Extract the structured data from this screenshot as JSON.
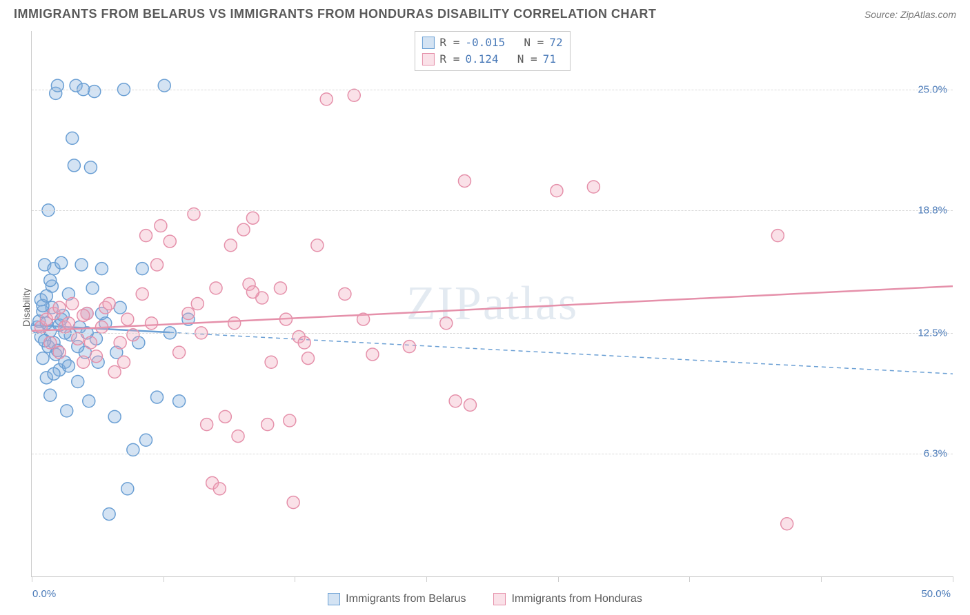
{
  "header": {
    "title": "IMMIGRANTS FROM BELARUS VS IMMIGRANTS FROM HONDURAS DISABILITY CORRELATION CHART",
    "source": "Source: ZipAtlas.com"
  },
  "chart": {
    "type": "scatter",
    "watermark": "ZIPatlas",
    "ylabel": "Disability",
    "xlim": [
      0,
      50
    ],
    "ylim": [
      0,
      28
    ],
    "yticks": [
      {
        "v": 25.0,
        "label": "25.0%"
      },
      {
        "v": 18.8,
        "label": "18.8%"
      },
      {
        "v": 12.5,
        "label": "12.5%"
      },
      {
        "v": 6.3,
        "label": "6.3%"
      }
    ],
    "xtick_positions": [
      0,
      7.14,
      14.28,
      21.42,
      28.56,
      35.7,
      42.84,
      50
    ],
    "xtick_labels": {
      "left": "0.0%",
      "right": "50.0%"
    },
    "background_color": "#ffffff",
    "grid_color": "#d8d8d8",
    "marker_radius": 9,
    "marker_stroke_width": 1.5,
    "trend_line_width": 2.5,
    "series": {
      "belarus": {
        "label": "Immigrants from Belarus",
        "fill": "rgba(133,175,222,0.35)",
        "stroke": "#6a9fd4",
        "trend": {
          "y_at_x0": 12.9,
          "y_at_xmax": 10.4,
          "solid_until_x": 7.5
        },
        "points": [
          [
            0.3,
            12.8
          ],
          [
            0.4,
            13.1
          ],
          [
            0.5,
            12.3
          ],
          [
            0.5,
            14.2
          ],
          [
            0.6,
            11.2
          ],
          [
            0.6,
            13.6
          ],
          [
            0.7,
            16.0
          ],
          [
            0.8,
            10.2
          ],
          [
            0.8,
            13.0
          ],
          [
            0.9,
            18.8
          ],
          [
            0.9,
            11.8
          ],
          [
            1.0,
            12.6
          ],
          [
            1.0,
            9.3
          ],
          [
            1.1,
            13.8
          ],
          [
            1.1,
            14.9
          ],
          [
            1.2,
            12.0
          ],
          [
            1.2,
            15.8
          ],
          [
            1.3,
            11.4
          ],
          [
            1.3,
            24.8
          ],
          [
            1.4,
            25.2
          ],
          [
            1.5,
            10.6
          ],
          [
            1.5,
            12.9
          ],
          [
            1.6,
            16.1
          ],
          [
            1.7,
            13.4
          ],
          [
            1.8,
            11.0
          ],
          [
            1.9,
            8.5
          ],
          [
            2.0,
            14.5
          ],
          [
            2.1,
            12.4
          ],
          [
            2.2,
            22.5
          ],
          [
            2.3,
            21.1
          ],
          [
            2.4,
            25.2
          ],
          [
            2.5,
            10.0
          ],
          [
            2.6,
            12.8
          ],
          [
            2.7,
            16.0
          ],
          [
            2.8,
            25.0
          ],
          [
            2.9,
            11.5
          ],
          [
            3.0,
            13.5
          ],
          [
            3.1,
            9.0
          ],
          [
            3.2,
            21.0
          ],
          [
            3.3,
            14.8
          ],
          [
            3.4,
            24.9
          ],
          [
            3.5,
            12.2
          ],
          [
            3.6,
            11.0
          ],
          [
            3.8,
            15.8
          ],
          [
            4.0,
            13.0
          ],
          [
            4.2,
            3.2
          ],
          [
            4.5,
            8.2
          ],
          [
            4.6,
            11.5
          ],
          [
            4.8,
            13.8
          ],
          [
            5.0,
            25.0
          ],
          [
            5.2,
            4.5
          ],
          [
            5.5,
            6.5
          ],
          [
            5.8,
            12.0
          ],
          [
            6.0,
            15.8
          ],
          [
            6.2,
            7.0
          ],
          [
            6.8,
            9.2
          ],
          [
            7.2,
            25.2
          ],
          [
            7.5,
            12.5
          ],
          [
            8.0,
            9.0
          ],
          [
            8.5,
            13.2
          ],
          [
            0.6,
            13.9
          ],
          [
            0.7,
            12.1
          ],
          [
            1.0,
            15.2
          ],
          [
            1.4,
            11.6
          ],
          [
            1.6,
            13.2
          ],
          [
            1.8,
            12.5
          ],
          [
            2.0,
            10.8
          ],
          [
            2.5,
            11.8
          ],
          [
            3.0,
            12.5
          ],
          [
            3.8,
            13.5
          ],
          [
            0.8,
            14.4
          ],
          [
            1.2,
            10.4
          ]
        ]
      },
      "honduras": {
        "label": "Immigrants from Honduras",
        "fill": "rgba(242,168,188,0.35)",
        "stroke": "#e590aa",
        "trend": {
          "y_at_x0": 12.6,
          "y_at_xmax": 14.9,
          "solid_until_x": 50
        },
        "points": [
          [
            0.5,
            12.8
          ],
          [
            0.8,
            13.2
          ],
          [
            1.0,
            12.0
          ],
          [
            1.2,
            13.5
          ],
          [
            1.5,
            11.5
          ],
          [
            1.8,
            12.8
          ],
          [
            2.0,
            13.0
          ],
          [
            2.2,
            14.0
          ],
          [
            2.5,
            12.2
          ],
          [
            2.8,
            11.0
          ],
          [
            3.0,
            13.5
          ],
          [
            3.2,
            12.0
          ],
          [
            3.5,
            11.3
          ],
          [
            3.8,
            12.8
          ],
          [
            4.0,
            13.8
          ],
          [
            4.5,
            10.5
          ],
          [
            4.8,
            12.0
          ],
          [
            5.0,
            11.0
          ],
          [
            5.2,
            13.2
          ],
          [
            5.5,
            12.4
          ],
          [
            6.0,
            14.5
          ],
          [
            6.5,
            13.0
          ],
          [
            6.8,
            16.0
          ],
          [
            7.0,
            18.0
          ],
          [
            7.5,
            17.2
          ],
          [
            8.0,
            11.5
          ],
          [
            8.5,
            13.5
          ],
          [
            8.8,
            18.6
          ],
          [
            9.0,
            14.0
          ],
          [
            9.5,
            7.8
          ],
          [
            9.8,
            4.8
          ],
          [
            10.0,
            14.8
          ],
          [
            10.2,
            4.5
          ],
          [
            10.5,
            8.2
          ],
          [
            10.8,
            17.0
          ],
          [
            11.0,
            13.0
          ],
          [
            11.2,
            7.2
          ],
          [
            11.5,
            17.8
          ],
          [
            11.8,
            15.0
          ],
          [
            12.0,
            18.4
          ],
          [
            12.5,
            14.3
          ],
          [
            12.8,
            7.8
          ],
          [
            13.0,
            11.0
          ],
          [
            13.5,
            14.8
          ],
          [
            14.0,
            8.0
          ],
          [
            14.2,
            3.8
          ],
          [
            14.5,
            12.3
          ],
          [
            15.0,
            11.2
          ],
          [
            15.5,
            17.0
          ],
          [
            16.0,
            24.5
          ],
          [
            17.0,
            14.5
          ],
          [
            17.5,
            24.7
          ],
          [
            18.0,
            13.2
          ],
          [
            18.5,
            11.4
          ],
          [
            20.5,
            11.8
          ],
          [
            22.5,
            13.0
          ],
          [
            23.0,
            9.0
          ],
          [
            23.5,
            20.3
          ],
          [
            23.8,
            8.8
          ],
          [
            28.5,
            19.8
          ],
          [
            30.5,
            20.0
          ],
          [
            40.5,
            17.5
          ],
          [
            41.0,
            2.7
          ],
          [
            1.5,
            13.8
          ],
          [
            2.8,
            13.4
          ],
          [
            4.2,
            14.0
          ],
          [
            6.2,
            17.5
          ],
          [
            9.2,
            12.5
          ],
          [
            12.0,
            14.6
          ],
          [
            13.8,
            13.2
          ],
          [
            14.8,
            12.0
          ]
        ]
      }
    },
    "legend_top": [
      {
        "series": "belarus",
        "R": "-0.015",
        "N": "72"
      },
      {
        "series": "honduras",
        "R": " 0.124",
        "N": "71"
      }
    ]
  }
}
